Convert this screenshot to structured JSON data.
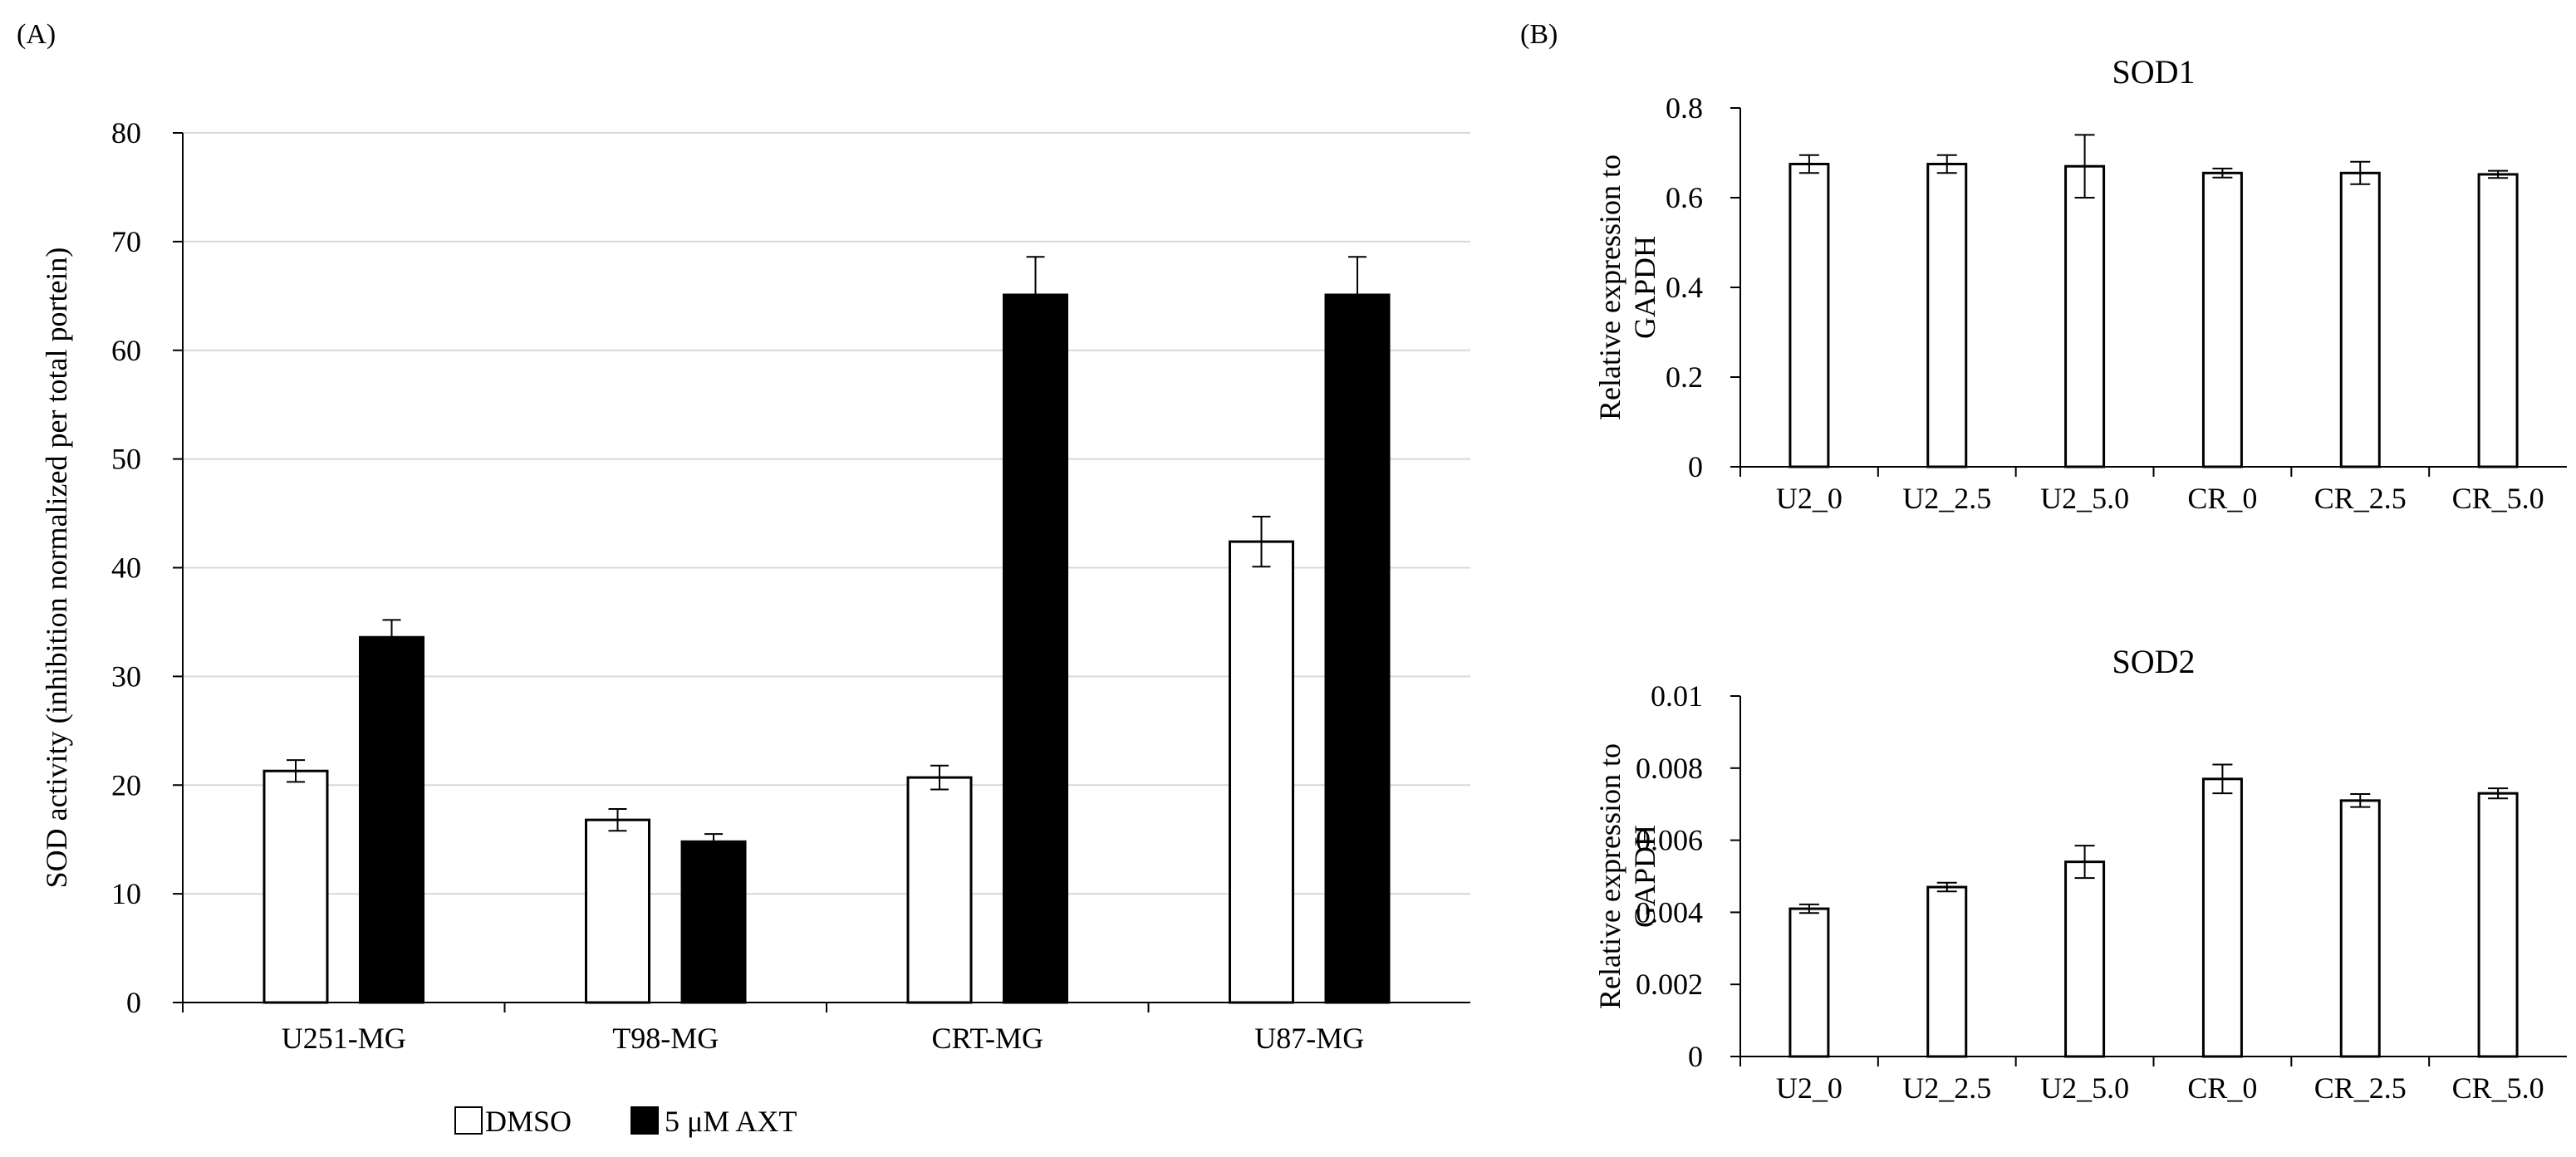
{
  "panels": {
    "a": "(A)",
    "b": "(B)"
  },
  "legend": {
    "dmso": "DMSO",
    "axt": "5 μM AXT"
  },
  "colors": {
    "dmso_fill": "#ffffff",
    "axt_fill": "#000000",
    "grid": "#d9d9d9",
    "axis": "#000000"
  },
  "chart_data": [
    {
      "id": "A",
      "type": "bar",
      "title": "",
      "ylabel": "SOD activity  (inhibition  normalized  per total portein)",
      "xlabel": "",
      "ylim": [
        0,
        80
      ],
      "yticks": [
        0,
        10,
        20,
        30,
        40,
        50,
        60,
        70,
        80
      ],
      "grid": true,
      "categories": [
        "U251-MG",
        "T98-MG",
        "CRT-MG",
        "U87-MG"
      ],
      "series": [
        {
          "name": "DMSO",
          "values": [
            21.3,
            16.8,
            20.7,
            42.4
          ],
          "errors": [
            1.0,
            1.0,
            1.1,
            2.3
          ]
        },
        {
          "name": "5 μM AXT",
          "values": [
            33.6,
            14.8,
            65.1,
            65.1
          ],
          "errors": [
            1.6,
            0.7,
            3.5,
            3.5
          ]
        }
      ],
      "legend_position": "bottom-center"
    },
    {
      "id": "B1",
      "type": "bar",
      "title": "SOD1",
      "ylabel": "Relative  expression  to GAPDH",
      "xlabel": "",
      "ylim": [
        0,
        0.8
      ],
      "yticks": [
        0,
        0.2,
        0.4,
        0.6,
        0.8
      ],
      "ytick_labels": [
        "0",
        "0.2",
        "0.4",
        "0.6",
        "0.8"
      ],
      "grid": false,
      "categories": [
        "U2_0",
        "U2_2.5",
        "U2_5.0",
        "CR_0",
        "CR_2.5",
        "CR_5.0"
      ],
      "series": [
        {
          "name": "SOD1",
          "values": [
            0.675,
            0.675,
            0.67,
            0.655,
            0.655,
            0.652
          ],
          "errors": [
            0.02,
            0.02,
            0.07,
            0.01,
            0.025,
            0.008
          ]
        }
      ]
    },
    {
      "id": "B2",
      "type": "bar",
      "title": "SOD2",
      "ylabel": "Relative  expression  to GAPDH",
      "xlabel": "",
      "ylim": [
        0,
        0.01
      ],
      "yticks": [
        0,
        0.002,
        0.004,
        0.006,
        0.008,
        0.01
      ],
      "ytick_labels": [
        "0",
        "0.002",
        "0.004",
        "0.006",
        "0.008",
        "0.01"
      ],
      "grid": false,
      "categories": [
        "U2_0",
        "U2_2.5",
        "U2_5.0",
        "CR_0",
        "CR_2.5",
        "CR_5.0"
      ],
      "series": [
        {
          "name": "SOD2",
          "values": [
            0.0041,
            0.0047,
            0.0054,
            0.0077,
            0.0071,
            0.0073
          ],
          "errors": [
            0.00012,
            0.00012,
            0.00045,
            0.0004,
            0.00018,
            0.00014
          ]
        }
      ]
    }
  ]
}
